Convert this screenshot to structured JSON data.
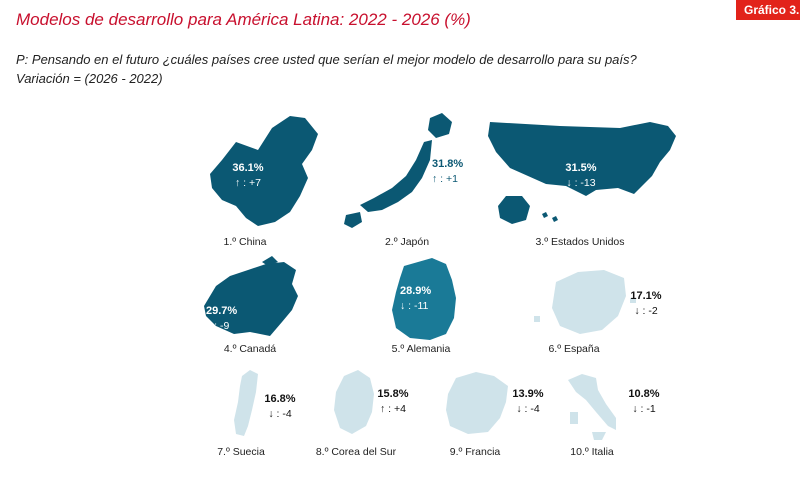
{
  "header": {
    "title": "Modelos de desarrollo para América Latina: 2022 - 2026 (%)",
    "badge": "Gráfico 3.",
    "question": "P: Pensando en el futuro ¿cuáles países cree usted que serían el mejor modelo de desarrollo para su país?",
    "variation": "Variación = (2026 - 2022)"
  },
  "colors": {
    "title": "#c8102e",
    "badge": "#e2231a",
    "dark": "#0b5873",
    "medium": "#1a7a97",
    "light": "#cfe3ea"
  },
  "chart_data": {
    "type": "pictogram-map",
    "unit": "%",
    "countries": [
      {
        "rank_label": "1.º China",
        "value": 36.1,
        "value_label": "36.1%",
        "change": 7,
        "change_label": "↑ : +7",
        "shade": "dark",
        "icon": "china-map-icon"
      },
      {
        "rank_label": "2.º Japón",
        "value": 31.8,
        "value_label": "31.8%",
        "change": 1,
        "change_label": "↑ : +1",
        "shade": "dark",
        "icon": "japan-map-icon"
      },
      {
        "rank_label": "3.º Estados Unidos",
        "value": 31.5,
        "value_label": "31.5%",
        "change": -13,
        "change_label": "↓ : -13",
        "shade": "dark",
        "icon": "usa-map-icon"
      },
      {
        "rank_label": "4.º Canadá",
        "value": 29.7,
        "value_label": "29.7%",
        "change": -9,
        "change_label": "↓ : -9",
        "shade": "dark",
        "icon": "canada-map-icon"
      },
      {
        "rank_label": "5.º Alemania",
        "value": 28.9,
        "value_label": "28.9%",
        "change": -11,
        "change_label": "↓ : -11",
        "shade": "medium",
        "icon": "germany-map-icon"
      },
      {
        "rank_label": "6.º España",
        "value": 17.1,
        "value_label": "17.1%",
        "change": -2,
        "change_label": "↓ : -2",
        "shade": "light",
        "icon": "spain-map-icon"
      },
      {
        "rank_label": "7.º Suecia",
        "value": 16.8,
        "value_label": "16.8%",
        "change": -4,
        "change_label": "↓ : -4",
        "shade": "light",
        "icon": "sweden-map-icon"
      },
      {
        "rank_label": "8.º Corea del Sur",
        "value": 15.8,
        "value_label": "15.8%",
        "change": 4,
        "change_label": "↑ : +4",
        "shade": "light",
        "icon": "south-korea-map-icon"
      },
      {
        "rank_label": "9.º Francia",
        "value": 13.9,
        "value_label": "13.9%",
        "change": -4,
        "change_label": "↓ : -4",
        "shade": "light",
        "icon": "france-map-icon"
      },
      {
        "rank_label": "10.º Italia",
        "value": 10.8,
        "value_label": "10.8%",
        "change": -1,
        "change_label": "↓ : -1",
        "shade": "light",
        "icon": "italy-map-icon"
      }
    ]
  }
}
